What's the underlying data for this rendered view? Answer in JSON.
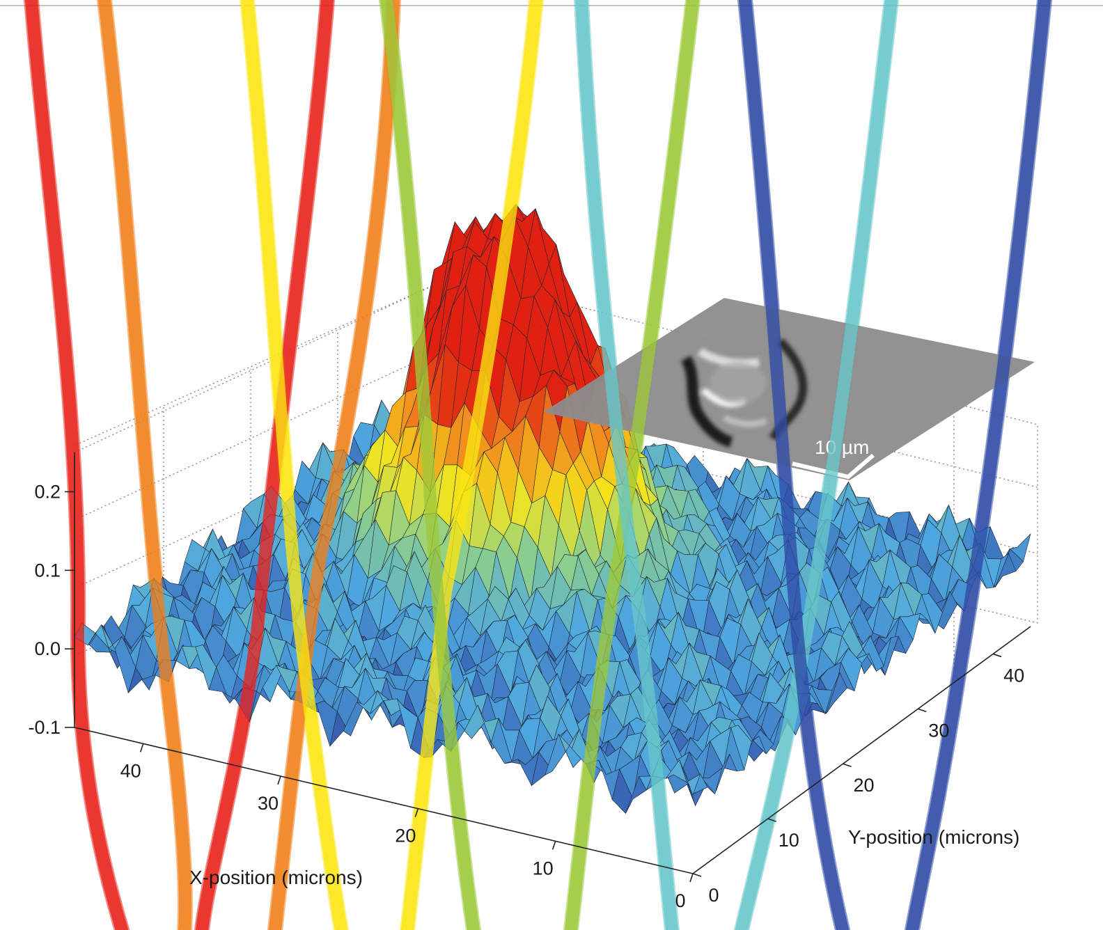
{
  "top_caption": "",
  "chart_data": {
    "type": "surface",
    "title": "",
    "xlabel": "X-position (microns)",
    "ylabel": "Y-position (microns)",
    "zlabel": "",
    "x_ticks": [
      40,
      30,
      20,
      10,
      0
    ],
    "y_ticks": [
      0,
      10,
      20,
      30,
      40
    ],
    "z_ticks": [
      "0.2",
      "0.1",
      "0.0",
      "-0.1"
    ],
    "x_range": [
      0,
      45
    ],
    "y_range": [
      0,
      45
    ],
    "z_range": [
      -0.1,
      0.25
    ],
    "grid": true,
    "colormap": [
      "#2b3a99",
      "#4fa8e0",
      "#8ed08a",
      "#f5e51a",
      "#f08a1d",
      "#e02010"
    ],
    "peaks": [
      {
        "x": 32,
        "y": 28,
        "z": 0.23
      },
      {
        "x": 27,
        "y": 31,
        "z": 0.19
      },
      {
        "x": 29,
        "y": 24,
        "z": 0.17
      },
      {
        "x": 23,
        "y": 26,
        "z": 0.16
      }
    ],
    "inset": {
      "label": "10 µm"
    },
    "trajectories": [
      {
        "color": "#e8231b"
      },
      {
        "color": "#f07f1a"
      },
      {
        "color": "#fbe612"
      },
      {
        "color": "#9cc83a"
      },
      {
        "color": "#66c7c9"
      },
      {
        "color": "#2e4aa5"
      }
    ]
  }
}
